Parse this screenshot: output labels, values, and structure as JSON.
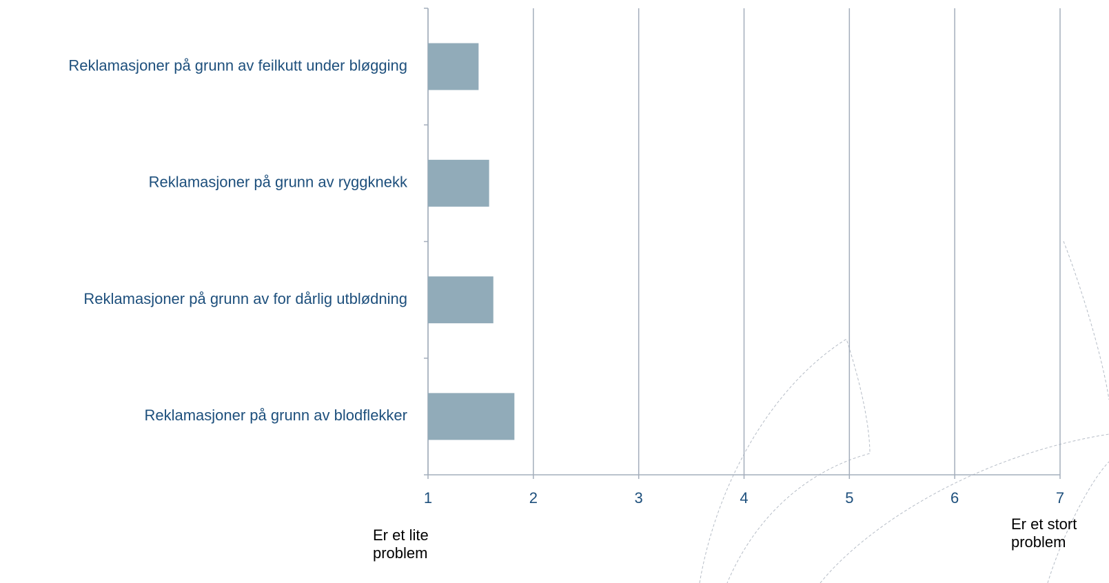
{
  "chart_data": {
    "type": "barh",
    "categories": [
      "Reklamasjoner på grunn av feilkutt under bløgging",
      "Reklamasjoner på grunn av ryggknekk",
      "Reklamasjoner på grunn av for dårlig utblødning",
      "Reklamasjoner på grunn av blodflekker"
    ],
    "values": [
      1.48,
      1.58,
      1.62,
      1.82
    ],
    "color": "#91abb9",
    "xlim": [
      1,
      7
    ],
    "xticks": [
      1,
      2,
      3,
      4,
      5,
      6,
      7
    ],
    "grid": true,
    "annotations": [
      "Er et lite problem",
      "Er et stort problem"
    ]
  }
}
